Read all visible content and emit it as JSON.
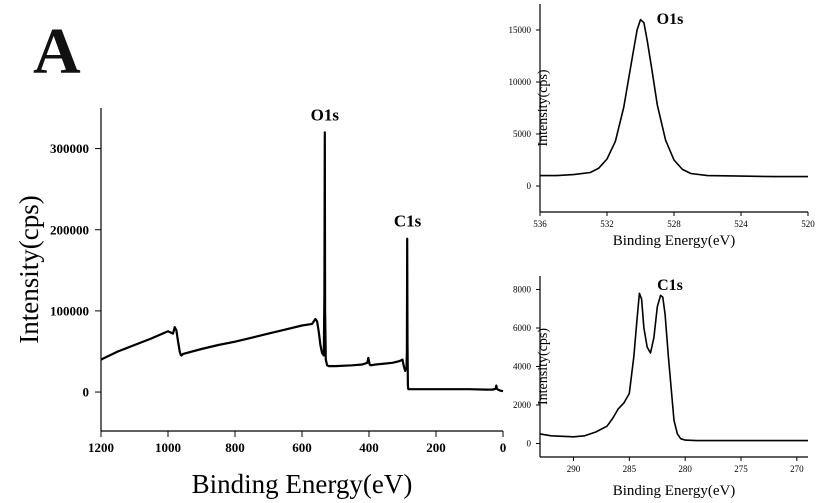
{
  "panel_label": "A",
  "chart_data": [
    {
      "type": "line",
      "title": "",
      "xlabel": "Binding Energy(eV)",
      "ylabel": "Intensity(cps)",
      "xlim": [
        1200,
        0
      ],
      "ylim": [
        -48000,
        350000
      ],
      "x_reversed": true,
      "xticks": [
        1200,
        1000,
        800,
        600,
        400,
        200,
        0
      ],
      "yticks": [
        0,
        100000,
        200000,
        300000
      ],
      "grid": false,
      "annotations": [
        {
          "text": "O1s",
          "x": 532,
          "y": 320000
        },
        {
          "text": "C1s",
          "x": 285,
          "y": 189000
        }
      ],
      "series": [
        {
          "x": [
            1200,
            1190,
            1150,
            1100,
            1050,
            1000,
            985,
            980,
            975,
            970,
            965,
            962,
            960,
            955,
            900,
            850,
            800,
            750,
            700,
            650,
            600,
            570,
            560,
            555,
            550,
            545,
            540,
            535,
            533,
            532,
            531,
            529,
            525,
            520,
            500,
            450,
            420,
            405,
            402,
            400,
            398,
            395,
            380,
            330,
            310,
            300,
            296,
            292,
            290,
            288,
            287,
            286,
            285,
            284,
            283,
            282,
            280,
            270,
            250,
            200,
            150,
            100,
            50,
            30,
            22,
            20,
            18,
            15,
            10,
            5,
            0
          ],
          "y": [
            40000,
            42000,
            50000,
            58000,
            66000,
            75000,
            72000,
            80000,
            76000,
            62000,
            50000,
            46000,
            45000,
            47000,
            53000,
            58000,
            62000,
            67000,
            72000,
            77000,
            82000,
            84000,
            90000,
            87000,
            74000,
            58000,
            48000,
            45000,
            120000,
            320000,
            100000,
            40000,
            33000,
            32000,
            32000,
            33000,
            34000,
            36000,
            42000,
            38000,
            34000,
            33000,
            34000,
            36000,
            38000,
            40000,
            32000,
            26000,
            28000,
            30000,
            50000,
            189000,
            60000,
            8000,
            4000,
            3500,
            3500,
            3500,
            3500,
            3500,
            3500,
            3500,
            3000,
            3000,
            4000,
            8000,
            4000,
            3000,
            2000,
            1500,
            1000
          ]
        }
      ]
    },
    {
      "type": "line",
      "title": "O1s",
      "xlabel": "Binding Energy(eV)",
      "ylabel": "Intensity(cps)",
      "xlim": [
        536,
        520
      ],
      "ylim": [
        -2500,
        17500
      ],
      "x_reversed": true,
      "xticks": [
        536,
        532,
        528,
        524,
        520
      ],
      "yticks": [
        0,
        5000,
        10000,
        15000
      ],
      "grid": false,
      "series": [
        {
          "x": [
            536,
            535,
            534,
            533,
            532.5,
            532,
            531.5,
            531,
            530.7,
            530.4,
            530.2,
            530,
            529.8,
            529.6,
            529.3,
            529,
            528.5,
            528,
            527.5,
            527,
            526,
            524,
            522,
            520
          ],
          "y": [
            1000,
            1000,
            1100,
            1300,
            1700,
            2600,
            4300,
            7600,
            10400,
            13200,
            15000,
            16000,
            15700,
            14000,
            11000,
            7800,
            4400,
            2500,
            1600,
            1200,
            1000,
            950,
            900,
            900
          ]
        }
      ]
    },
    {
      "type": "line",
      "title": "C1s",
      "xlabel": "Binding Energy(eV)",
      "ylabel": "Intensity(cps)",
      "xlim": [
        293,
        269
      ],
      "ylim": [
        -700,
        8700
      ],
      "x_reversed": true,
      "xticks": [
        290,
        285,
        280,
        275,
        270
      ],
      "yticks": [
        0,
        2000,
        4000,
        6000,
        8000
      ],
      "grid": false,
      "series": [
        {
          "x": [
            293,
            292,
            290,
            289,
            288,
            287,
            286.5,
            286,
            285.5,
            285,
            284.6,
            284.3,
            284.1,
            283.9,
            283.7,
            283.4,
            283.1,
            282.8,
            282.5,
            282.2,
            282,
            281.8,
            281.5,
            281.2,
            281,
            280.7,
            280.4,
            280,
            279,
            277,
            275,
            272,
            269
          ],
          "y": [
            500,
            400,
            350,
            400,
            600,
            900,
            1300,
            1800,
            2100,
            2600,
            4500,
            6500,
            7800,
            7500,
            6000,
            5000,
            4700,
            5500,
            7100,
            7700,
            7600,
            6700,
            4500,
            2500,
            1200,
            500,
            250,
            180,
            150,
            150,
            150,
            150,
            150
          ]
        }
      ]
    }
  ]
}
